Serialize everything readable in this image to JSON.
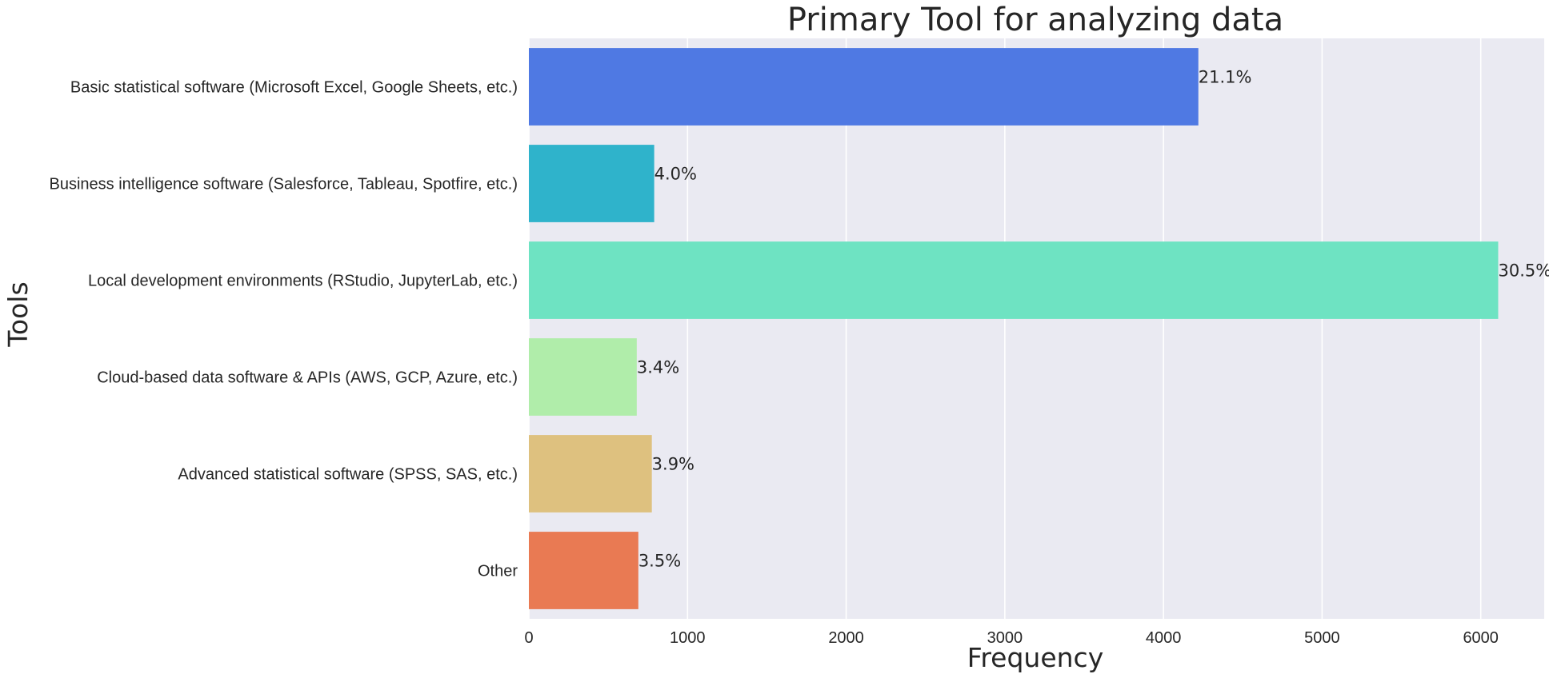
{
  "chart_data": {
    "type": "bar",
    "orientation": "horizontal",
    "title": "Primary Tool for analyzing data",
    "xlabel": "Frequency",
    "ylabel": "Tools",
    "categories": [
      "Basic statistical software (Microsoft Excel, Google Sheets, etc.)",
      "Business intelligence software (Salesforce, Tableau, Spotfire, etc.)",
      "Local development environments (RStudio, JupyterLab, etc.)",
      "Cloud-based data software & APIs (AWS, GCP, Azure, etc.)",
      "Advanced statistical software (SPSS, SAS, etc.)",
      "Other"
    ],
    "values": [
      4220,
      790,
      6110,
      680,
      775,
      690
    ],
    "data_labels": [
      "21.1%",
      "4.0%",
      "30.5%",
      "3.4%",
      "3.9%",
      "3.5%"
    ],
    "colors": [
      "#4f79e3",
      "#2fb3cb",
      "#6ee3c2",
      "#b0edaa",
      "#dec17f",
      "#e97a53"
    ],
    "xticks": [
      0,
      1000,
      2000,
      3000,
      4000,
      5000,
      6000
    ],
    "xlim": [
      0,
      6400
    ],
    "grid": true,
    "background": "#eaeaf2",
    "grid_color": "#ffffff"
  }
}
